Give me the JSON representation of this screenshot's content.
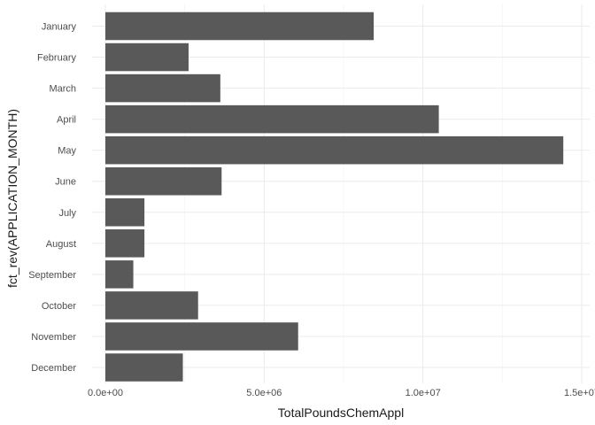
{
  "chart_data": {
    "type": "bar",
    "orientation": "horizontal",
    "xlabel": "TotalPoundsChemAppl",
    "ylabel": "fct_rev(APPLICATION_MONTH)",
    "xlim": [
      0,
      15000000
    ],
    "x_ticks": [
      0,
      5000000,
      10000000,
      15000000
    ],
    "x_tick_labels": [
      "0.0e+00",
      "5.0e+06",
      "1.0e+07",
      "1.5e+07"
    ],
    "grid": true,
    "legend": "none",
    "bar_color": "#595959",
    "categories": [
      "January",
      "February",
      "March",
      "April",
      "May",
      "June",
      "July",
      "August",
      "September",
      "October",
      "November",
      "December"
    ],
    "values": [
      8450000,
      2620000,
      3620000,
      10500000,
      14420000,
      3660000,
      1230000,
      1230000,
      880000,
      2920000,
      6070000,
      2440000
    ]
  }
}
